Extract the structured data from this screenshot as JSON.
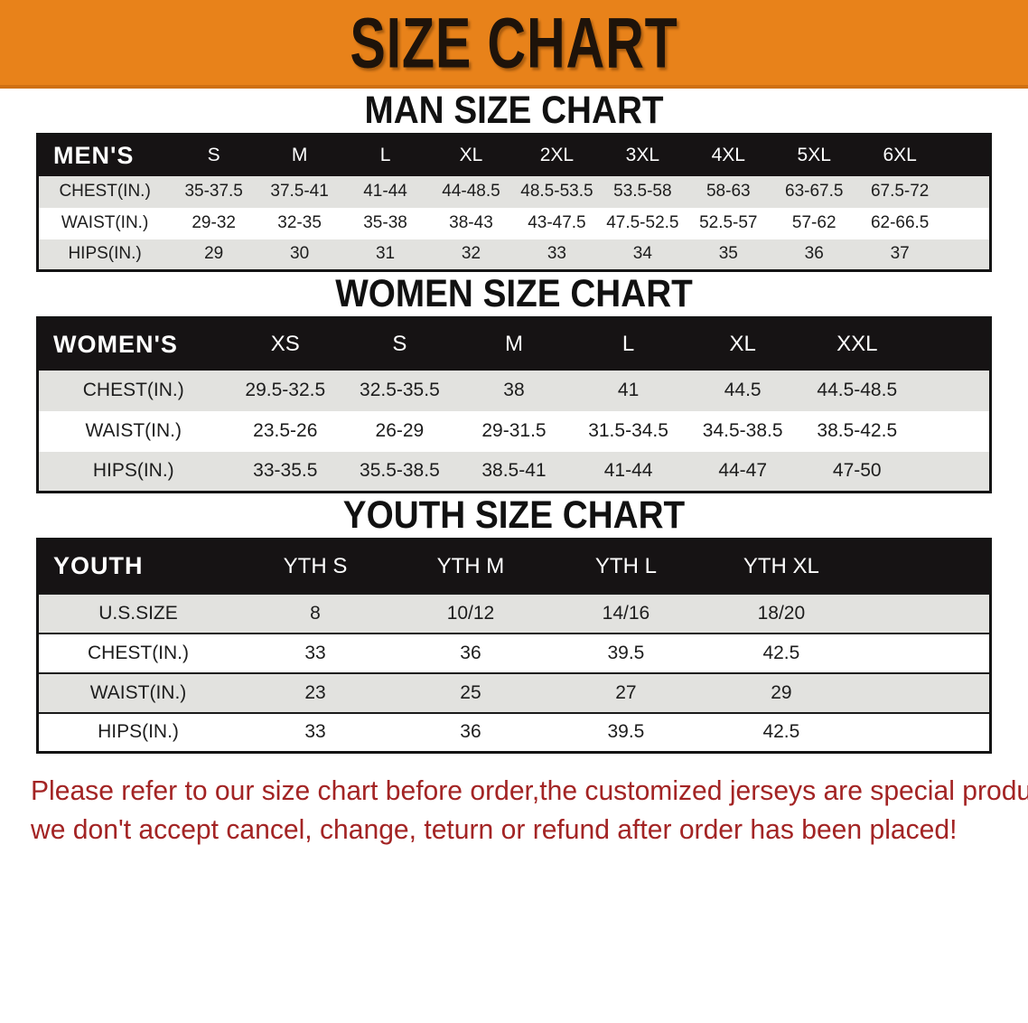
{
  "banner": {
    "title": "SIZE CHART"
  },
  "colors": {
    "banner_bg": "#E8821A",
    "table_header_bg": "#161314",
    "row_stripe_gray": "#e2e2df",
    "disclaimer_red": "#A32424"
  },
  "sections": [
    {
      "heading": "MAN SIZE CHART",
      "table": {
        "label": "MEN'S",
        "columns": [
          "S",
          "M",
          "L",
          "XL",
          "2XL",
          "3XL",
          "4XL",
          "5XL",
          "6XL"
        ],
        "rows": [
          {
            "label": "CHEST(IN.)",
            "values": [
              "35-37.5",
              "37.5-41",
              "41-44",
              "44-48.5",
              "48.5-53.5",
              "53.5-58",
              "58-63",
              "63-67.5",
              "67.5-72"
            ]
          },
          {
            "label": "WAIST(IN.)",
            "values": [
              "29-32",
              "32-35",
              "35-38",
              "38-43",
              "43-47.5",
              "47.5-52.5",
              "52.5-57",
              "57-62",
              "62-66.5"
            ]
          },
          {
            "label": "HIPS(IN.)",
            "values": [
              "29",
              "30",
              "31",
              "32",
              "33",
              "34",
              "35",
              "36",
              "37"
            ]
          }
        ]
      }
    },
    {
      "heading": "WOMEN SIZE CHART",
      "table": {
        "label": "WOMEN'S",
        "columns": [
          "XS",
          "S",
          "M",
          "L",
          "XL",
          "XXL"
        ],
        "rows": [
          {
            "label": "CHEST(IN.)",
            "values": [
              "29.5-32.5",
              "32.5-35.5",
              "38",
              "41",
              "44.5",
              "44.5-48.5"
            ]
          },
          {
            "label": "WAIST(IN.)",
            "values": [
              "23.5-26",
              "26-29",
              "29-31.5",
              "31.5-34.5",
              "34.5-38.5",
              "38.5-42.5"
            ]
          },
          {
            "label": "HIPS(IN.)",
            "values": [
              "33-35.5",
              "35.5-38.5",
              "38.5-41",
              "41-44",
              "44-47",
              "47-50"
            ]
          }
        ]
      }
    },
    {
      "heading": "YOUTH SIZE CHART",
      "table": {
        "label": "YOUTH",
        "columns": [
          "YTH S",
          "YTH M",
          "YTH L",
          "YTH XL"
        ],
        "rows": [
          {
            "label": "U.S.SIZE",
            "values": [
              "8",
              "10/12",
              "14/16",
              "18/20"
            ]
          },
          {
            "label": "CHEST(IN.)",
            "values": [
              "33",
              "36",
              "39.5",
              "42.5"
            ]
          },
          {
            "label": "WAIST(IN.)",
            "values": [
              "23",
              "25",
              "27",
              "29"
            ]
          },
          {
            "label": "HIPS(IN.)",
            "values": [
              "33",
              "36",
              "39.5",
              "42.5"
            ]
          }
        ]
      }
    }
  ],
  "disclaimer": {
    "line1": "Please refer to our size chart before order,the customized jerseys are special products,",
    "line2": "we don't accept cancel, change, teturn or refund after order has been placed!"
  }
}
